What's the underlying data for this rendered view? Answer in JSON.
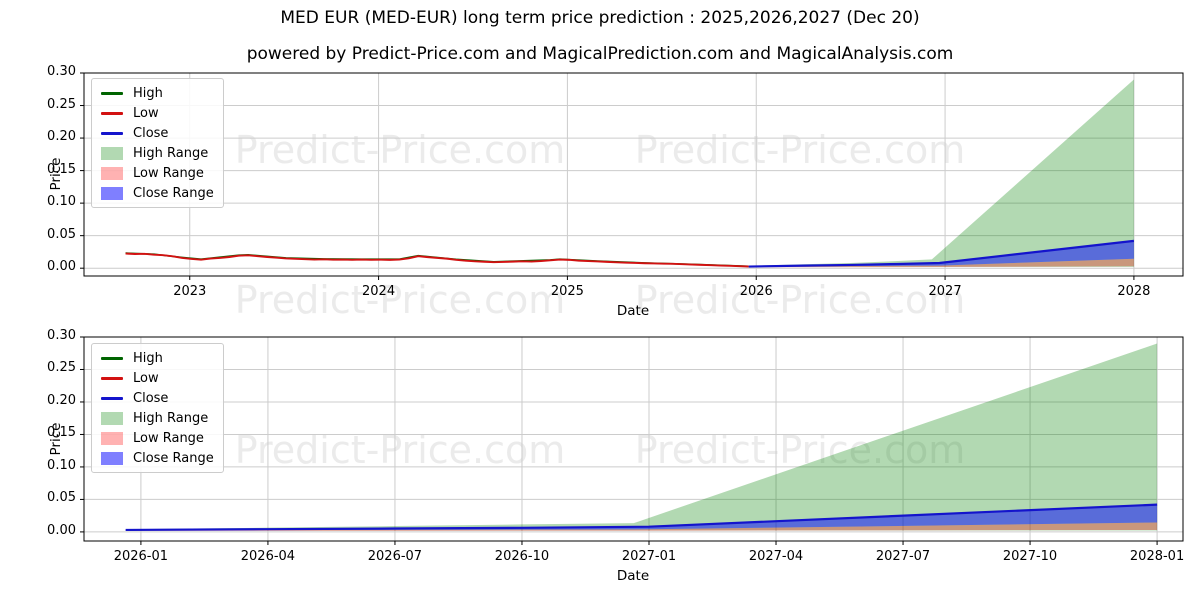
{
  "header": {
    "title": "MED EUR (MED-EUR) long term price prediction : 2025,2026,2027 (Dec 20)",
    "subtitle": "powered by Predict-Price.com and MagicalPrediction.com and MagicalAnalysis.com"
  },
  "watermark": {
    "text": "Predict-Price.com",
    "color": "#ebebeb"
  },
  "legend": {
    "position": "upper left",
    "items": [
      {
        "label": "High",
        "kind": "line",
        "color": "#006400"
      },
      {
        "label": "Low",
        "kind": "line",
        "color": "#d21111"
      },
      {
        "label": "Close",
        "kind": "line",
        "color": "#1414cc"
      },
      {
        "label": "High Range",
        "kind": "patch",
        "color": "rgba(0,128,0,0.30)"
      },
      {
        "label": "Low Range",
        "kind": "patch",
        "color": "rgba(255,0,0,0.30)"
      },
      {
        "label": "Close Range",
        "kind": "patch",
        "color": "rgba(0,0,255,0.50)"
      }
    ]
  },
  "chart_data": [
    {
      "type": "line",
      "xlabel": "Date",
      "ylabel": "Price",
      "grid": true,
      "legend_position": "upper left",
      "xlim": [
        2022.44,
        2028.26
      ],
      "ylim": [
        -0.012,
        0.3
      ],
      "xticks": [
        {
          "v": 2023,
          "label": "2023"
        },
        {
          "v": 2024,
          "label": "2024"
        },
        {
          "v": 2025,
          "label": "2025"
        },
        {
          "v": 2026,
          "label": "2026"
        },
        {
          "v": 2027,
          "label": "2027"
        },
        {
          "v": 2028,
          "label": "2028"
        }
      ],
      "yticks": [
        {
          "v": 0.0,
          "label": "0.00"
        },
        {
          "v": 0.05,
          "label": "0.05"
        },
        {
          "v": 0.1,
          "label": "0.10"
        },
        {
          "v": 0.15,
          "label": "0.15"
        },
        {
          "v": 0.2,
          "label": "0.20"
        },
        {
          "v": 0.25,
          "label": "0.25"
        },
        {
          "v": 0.3,
          "label": "0.30"
        }
      ],
      "bands": [
        {
          "name": "high-range",
          "label": "High Range",
          "color": "rgba(0,128,0,0.30)",
          "top": [
            [
              2025.96,
              0.0035
            ],
            [
              2026.25,
              0.006
            ],
            [
              2026.5,
              0.008
            ],
            [
              2026.75,
              0.011
            ],
            [
              2026.93,
              0.0135
            ],
            [
              2028.0,
              0.29
            ]
          ],
          "bottom": [
            [
              2025.96,
              0.002
            ],
            [
              2028.0,
              0.002
            ]
          ]
        },
        {
          "name": "low-range",
          "label": "Low Range",
          "color": "rgba(255,0,0,0.30)",
          "top": [
            [
              2025.96,
              0.0022
            ],
            [
              2026.97,
              0.004
            ],
            [
              2028.0,
              0.0145
            ]
          ],
          "bottom": [
            [
              2025.96,
              0.0015
            ],
            [
              2026.97,
              0.0018
            ],
            [
              2028.0,
              0.003
            ]
          ]
        },
        {
          "name": "close-range",
          "label": "Close Range",
          "color": "rgba(0,0,255,0.50)",
          "top": [
            [
              2025.96,
              0.0025
            ],
            [
              2026.25,
              0.004
            ],
            [
              2026.5,
              0.005
            ],
            [
              2026.75,
              0.0065
            ],
            [
              2026.97,
              0.008
            ],
            [
              2028.0,
              0.042
            ]
          ],
          "bottom": [
            [
              2025.96,
              0.0022
            ],
            [
              2026.97,
              0.004
            ],
            [
              2028.0,
              0.0145
            ]
          ]
        }
      ],
      "lines": [
        {
          "name": "high-history",
          "label": "High",
          "color": "#006400",
          "width": 1.6,
          "points": [
            [
              2022.66,
              0.0232
            ],
            [
              2022.81,
              0.0215
            ],
            [
              2022.96,
              0.0165
            ],
            [
              2023.06,
              0.0138
            ],
            [
              2023.26,
              0.02
            ],
            [
              2023.31,
              0.0205
            ],
            [
              2023.51,
              0.0157
            ],
            [
              2023.71,
              0.0142
            ],
            [
              2023.91,
              0.0139
            ],
            [
              2024.11,
              0.0139
            ],
            [
              2024.21,
              0.0193
            ],
            [
              2024.41,
              0.0136
            ],
            [
              2024.61,
              0.0098
            ],
            [
              2024.91,
              0.0128
            ],
            [
              2024.96,
              0.0139
            ],
            [
              2025.16,
              0.011
            ],
            [
              2025.41,
              0.0081
            ],
            [
              2025.66,
              0.006
            ],
            [
              2025.91,
              0.0035
            ],
            [
              2025.96,
              0.003
            ]
          ]
        },
        {
          "name": "low-history",
          "label": "Low",
          "color": "#d21111",
          "width": 1.9,
          "points": [
            [
              2022.66,
              0.0225
            ],
            [
              2022.71,
              0.0218
            ],
            [
              2022.76,
              0.0221
            ],
            [
              2022.81,
              0.0208
            ],
            [
              2022.86,
              0.02
            ],
            [
              2022.91,
              0.0182
            ],
            [
              2022.96,
              0.0158
            ],
            [
              2023.01,
              0.0142
            ],
            [
              2023.06,
              0.013
            ],
            [
              2023.11,
              0.0148
            ],
            [
              2023.16,
              0.0158
            ],
            [
              2023.21,
              0.0172
            ],
            [
              2023.26,
              0.0192
            ],
            [
              2023.31,
              0.0198
            ],
            [
              2023.36,
              0.0185
            ],
            [
              2023.41,
              0.0172
            ],
            [
              2023.46,
              0.0162
            ],
            [
              2023.51,
              0.015
            ],
            [
              2023.56,
              0.0144
            ],
            [
              2023.61,
              0.0138
            ],
            [
              2023.66,
              0.0132
            ],
            [
              2023.71,
              0.0136
            ],
            [
              2023.76,
              0.013
            ],
            [
              2023.81,
              0.0133
            ],
            [
              2023.86,
              0.0129
            ],
            [
              2023.91,
              0.0133
            ],
            [
              2023.96,
              0.0129
            ],
            [
              2024.01,
              0.0131
            ],
            [
              2024.06,
              0.0128
            ],
            [
              2024.11,
              0.0133
            ],
            [
              2024.16,
              0.0152
            ],
            [
              2024.21,
              0.0185
            ],
            [
              2024.26,
              0.017
            ],
            [
              2024.31,
              0.0158
            ],
            [
              2024.36,
              0.0147
            ],
            [
              2024.41,
              0.0129
            ],
            [
              2024.46,
              0.0116
            ],
            [
              2024.51,
              0.0105
            ],
            [
              2024.56,
              0.0099
            ],
            [
              2024.61,
              0.0092
            ],
            [
              2024.66,
              0.0096
            ],
            [
              2024.71,
              0.0101
            ],
            [
              2024.76,
              0.0105
            ],
            [
              2024.81,
              0.0102
            ],
            [
              2024.86,
              0.011
            ],
            [
              2024.91,
              0.0121
            ],
            [
              2024.96,
              0.0132
            ],
            [
              2025.01,
              0.0128
            ],
            [
              2025.06,
              0.0116
            ],
            [
              2025.11,
              0.011
            ],
            [
              2025.16,
              0.0104
            ],
            [
              2025.21,
              0.0097
            ],
            [
              2025.26,
              0.0091
            ],
            [
              2025.31,
              0.0085
            ],
            [
              2025.36,
              0.008
            ],
            [
              2025.41,
              0.0076
            ],
            [
              2025.46,
              0.0073
            ],
            [
              2025.51,
              0.007
            ],
            [
              2025.56,
              0.0067
            ],
            [
              2025.61,
              0.0062
            ],
            [
              2025.66,
              0.0056
            ],
            [
              2025.71,
              0.0051
            ],
            [
              2025.76,
              0.0046
            ],
            [
              2025.81,
              0.004
            ],
            [
              2025.86,
              0.0036
            ],
            [
              2025.91,
              0.0031
            ],
            [
              2025.96,
              0.0026
            ]
          ]
        },
        {
          "name": "close-prediction",
          "label": "Close",
          "color": "#1414cc",
          "width": 2.2,
          "points": [
            [
              2025.96,
              0.0025
            ],
            [
              2026.25,
              0.004
            ],
            [
              2026.5,
              0.005
            ],
            [
              2026.75,
              0.0065
            ],
            [
              2026.97,
              0.008
            ],
            [
              2028.0,
              0.042
            ]
          ]
        }
      ]
    },
    {
      "type": "line",
      "xlabel": "Date",
      "ylabel": "Price",
      "grid": true,
      "legend_position": "upper left",
      "xlim": [
        2025.888,
        2028.051
      ],
      "ylim": [
        -0.014,
        0.3
      ],
      "xticks": [
        {
          "v": 2026.0,
          "label": "2026-01"
        },
        {
          "v": 2026.25,
          "label": "2026-04"
        },
        {
          "v": 2026.5,
          "label": "2026-07"
        },
        {
          "v": 2026.75,
          "label": "2026-10"
        },
        {
          "v": 2027.0,
          "label": "2027-01"
        },
        {
          "v": 2027.25,
          "label": "2027-04"
        },
        {
          "v": 2027.5,
          "label": "2027-07"
        },
        {
          "v": 2027.75,
          "label": "2027-10"
        },
        {
          "v": 2028.0,
          "label": "2028-01"
        }
      ],
      "yticks": [
        {
          "v": 0.0,
          "label": "0.00"
        },
        {
          "v": 0.05,
          "label": "0.05"
        },
        {
          "v": 0.1,
          "label": "0.10"
        },
        {
          "v": 0.15,
          "label": "0.15"
        },
        {
          "v": 0.2,
          "label": "0.20"
        },
        {
          "v": 0.25,
          "label": "0.25"
        },
        {
          "v": 0.3,
          "label": "0.30"
        }
      ],
      "bands": [
        {
          "name": "high-range",
          "label": "High Range",
          "color": "rgba(0,128,0,0.30)",
          "top": [
            [
              2025.97,
              0.004
            ],
            [
              2026.25,
              0.0065
            ],
            [
              2026.5,
              0.009
            ],
            [
              2026.75,
              0.0115
            ],
            [
              2026.97,
              0.0135
            ],
            [
              2028.0,
              0.29
            ]
          ],
          "bottom": [
            [
              2025.97,
              0.0022
            ],
            [
              2028.0,
              0.0022
            ]
          ]
        },
        {
          "name": "low-range",
          "label": "Low Range",
          "color": "rgba(255,0,0,0.30)",
          "top": [
            [
              2025.97,
              0.0025
            ],
            [
              2027.0,
              0.004
            ],
            [
              2028.0,
              0.0145
            ]
          ],
          "bottom": [
            [
              2025.97,
              0.0015
            ],
            [
              2027.0,
              0.0018
            ],
            [
              2028.0,
              0.003
            ]
          ]
        },
        {
          "name": "close-range",
          "label": "Close Range",
          "color": "rgba(0,0,255,0.50)",
          "top": [
            [
              2025.97,
              0.003
            ],
            [
              2026.25,
              0.0042
            ],
            [
              2026.5,
              0.0052
            ],
            [
              2026.75,
              0.0063
            ],
            [
              2027.0,
              0.008
            ],
            [
              2028.0,
              0.042
            ]
          ],
          "bottom": [
            [
              2025.97,
              0.0025
            ],
            [
              2027.0,
              0.004
            ],
            [
              2028.0,
              0.0145
            ]
          ]
        }
      ],
      "lines": [
        {
          "name": "close-prediction",
          "label": "Close",
          "color": "#1414cc",
          "width": 2.2,
          "points": [
            [
              2025.97,
              0.003
            ],
            [
              2026.25,
              0.0042
            ],
            [
              2026.5,
              0.0052
            ],
            [
              2026.75,
              0.0063
            ],
            [
              2027.0,
              0.008
            ],
            [
              2028.0,
              0.042
            ]
          ]
        }
      ]
    }
  ]
}
